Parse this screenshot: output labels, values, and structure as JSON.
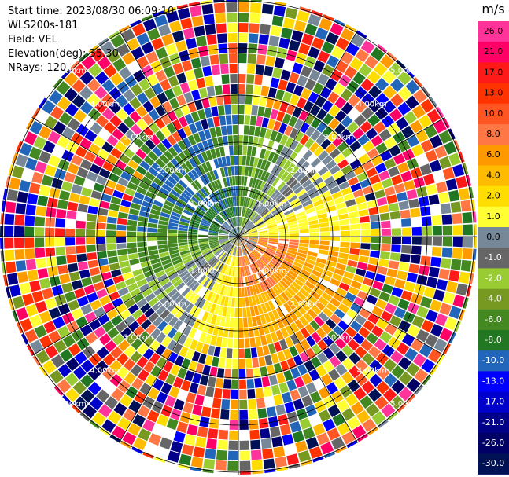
{
  "header": {
    "start_time": "Start time: 2023/08/30 06:09:10",
    "site": "WLS200s-181",
    "field": "Field: VEL",
    "elevation": "Elevation(deg): 35.30",
    "nrays": "NRays: 120"
  },
  "colorbar": {
    "unit": "m/s",
    "ticks": [
      "26.0",
      "21.0",
      "17.0",
      "13.0",
      "10.0",
      "8.0",
      "6.0",
      "4.0",
      "2.0",
      "1.0",
      "0.0",
      "-1.0",
      "-2.0",
      "-4.0",
      "-6.0",
      "-8.0",
      "-10.0",
      "-13.0",
      "-17.0",
      "-21.0",
      "-26.0",
      "-30.0"
    ],
    "colors": [
      "#ff3399",
      "#ff0066",
      "#ff1a1a",
      "#ff3300",
      "#ff5522",
      "#ff7744",
      "#ff9900",
      "#ffbb00",
      "#ffdd00",
      "#ffff33",
      "#778899",
      "#666666",
      "#99cc33",
      "#779922",
      "#448822",
      "#227722",
      "#2266bb",
      "#0000ff",
      "#0000cc",
      "#000088",
      "#000066",
      "#001155"
    ]
  },
  "chart_data": {
    "type": "ppi",
    "nrays": 120,
    "range_rings": [
      {
        "label": "1.00km",
        "km": 1
      },
      {
        "label": "2.00km",
        "km": 2
      },
      {
        "label": "3.00km",
        "km": 3
      },
      {
        "label": "4.00km",
        "km": 4
      },
      {
        "label": "5.00km",
        "km": 5
      }
    ],
    "velocity_pattern": {
      "approaching_direction": "north-west",
      "receding_direction": "south-east",
      "near_field_max_range_km": 2.3,
      "outer_field": "noisy"
    }
  }
}
